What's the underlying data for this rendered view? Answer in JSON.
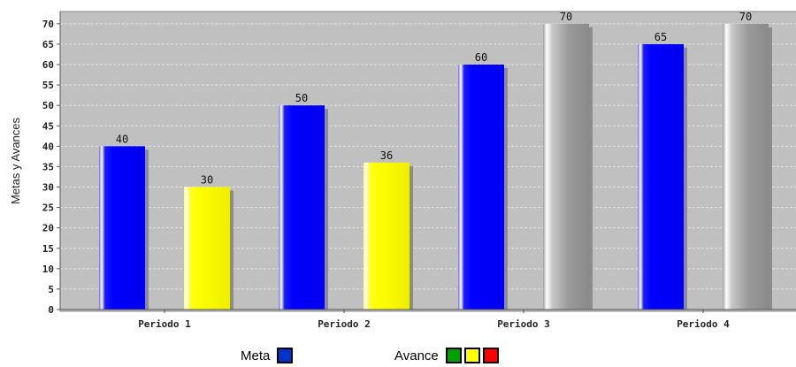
{
  "chart_data": {
    "type": "bar",
    "ylabel": "Metas y Avances",
    "xlabel": "",
    "ylim": [
      0,
      73
    ],
    "yticks": [
      0,
      5,
      10,
      15,
      20,
      25,
      30,
      35,
      40,
      45,
      50,
      55,
      60,
      65,
      70
    ],
    "grid": true,
    "categories": [
      "Periodo 1",
      "Periodo 2",
      "Periodo 3",
      "Periodo 4"
    ],
    "series": [
      {
        "name": "Meta",
        "values": [
          40,
          50,
          60,
          65
        ],
        "colors": [
          "#0000ff",
          "#0000ff",
          "#0000ff",
          "#0000ff"
        ]
      },
      {
        "name": "Avance",
        "values": [
          30,
          36,
          70,
          70
        ],
        "colors": [
          "#ffff00",
          "#ffff00",
          "#9a9a9a",
          "#9a9a9a"
        ]
      }
    ],
    "colors": {
      "plot_background": "#c0c0c0"
    }
  },
  "legend": {
    "meta_label": "Meta",
    "meta_color": "#0033cc",
    "avance_label": "Avance",
    "avance_colors": [
      "#00a000",
      "#ffff00",
      "#ff0000"
    ]
  }
}
